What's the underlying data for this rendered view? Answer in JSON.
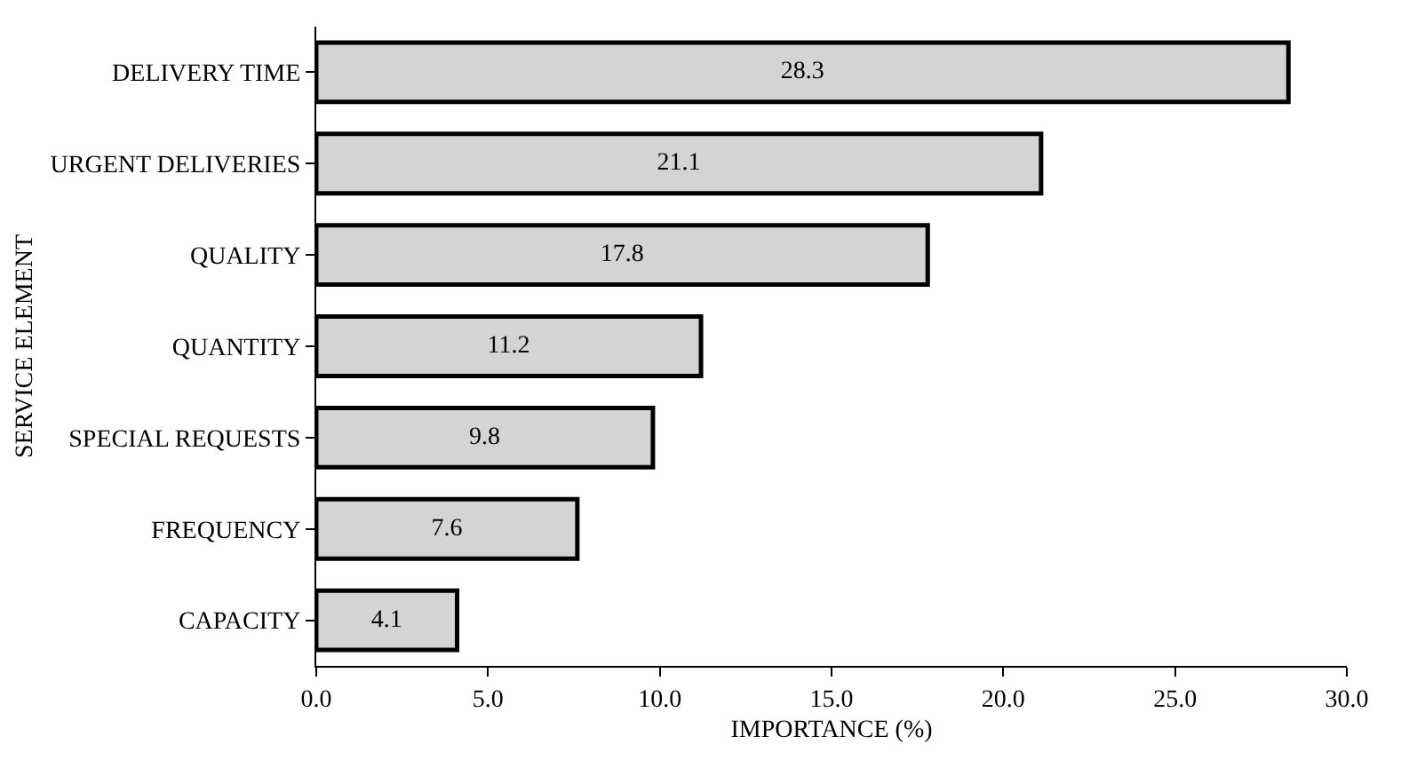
{
  "chart_data": {
    "type": "bar",
    "orientation": "horizontal",
    "xlabel": "IMPORTANCE (%)",
    "ylabel": "SERVICE ELEMENT",
    "categories": [
      "DELIVERY TIME",
      "URGENT DELIVERIES",
      "QUALITY",
      "QUANTITY",
      "SPECIAL REQUESTS",
      "FREQUENCY",
      "CAPACITY"
    ],
    "values": [
      28.3,
      21.1,
      17.8,
      11.2,
      9.8,
      7.6,
      4.1
    ],
    "color": "#d4d4d4",
    "data_labels": true,
    "xlim": [
      0,
      30
    ],
    "xticks": [
      {
        "value": 0,
        "label": "0.0"
      },
      {
        "value": 5,
        "label": "5.0"
      },
      {
        "value": 10,
        "label": "10.0"
      },
      {
        "value": 15,
        "label": "15.0"
      },
      {
        "value": 20,
        "label": "20.0"
      },
      {
        "value": 25,
        "label": "25.0"
      },
      {
        "value": 30,
        "label": "30.0"
      }
    ]
  }
}
